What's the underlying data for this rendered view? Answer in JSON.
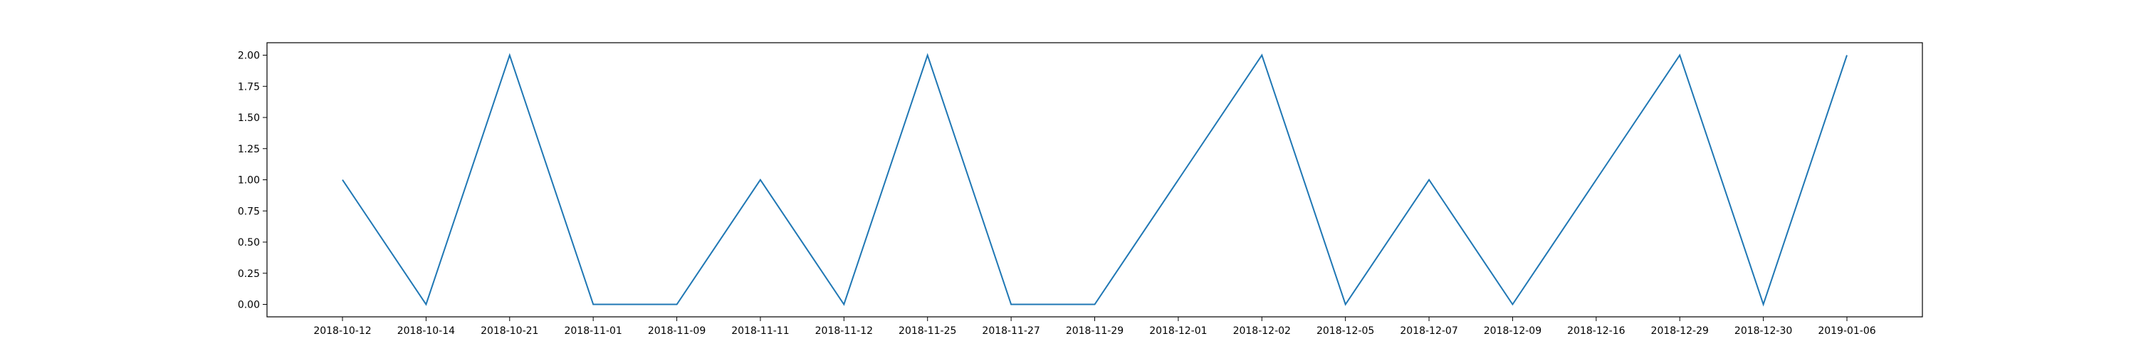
{
  "chart_data": {
    "type": "line",
    "title": "",
    "xlabel": "",
    "ylabel": "",
    "categories": [
      "2018-10-12",
      "2018-10-14",
      "2018-10-21",
      "2018-11-01",
      "2018-11-09",
      "2018-11-11",
      "2018-11-12",
      "2018-11-25",
      "2018-11-27",
      "2018-11-29",
      "2018-12-01",
      "2018-12-02",
      "2018-12-05",
      "2018-12-07",
      "2018-12-09",
      "2018-12-16",
      "2018-12-29",
      "2018-12-30",
      "2019-01-06"
    ],
    "series": [
      {
        "values": [
          1,
          0,
          2,
          0,
          0,
          1,
          0,
          2,
          0,
          0,
          1,
          2,
          0,
          1,
          0,
          1,
          2,
          0,
          2
        ],
        "color": "#1f77b4"
      }
    ],
    "ylim": [
      -0.1,
      2.1
    ],
    "yticks": [
      0.0,
      0.25,
      0.5,
      0.75,
      1.0,
      1.25,
      1.5,
      1.75,
      2.0
    ],
    "ytick_labels": [
      "0.00",
      "0.25",
      "0.50",
      "0.75",
      "1.00",
      "1.25",
      "1.50",
      "1.75",
      "2.00"
    ],
    "grid": false,
    "legend": "none"
  }
}
